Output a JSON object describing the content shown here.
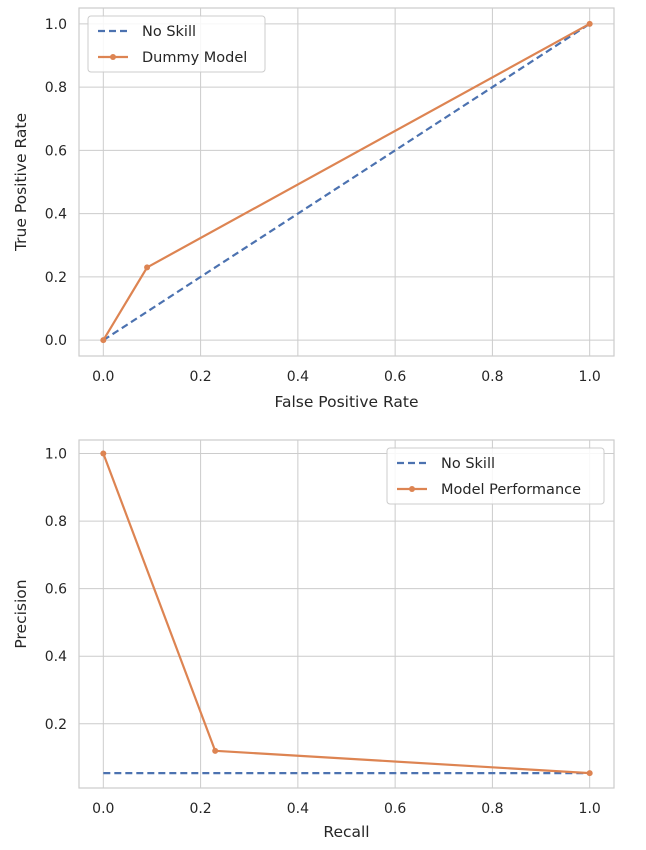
{
  "chart_data": [
    {
      "type": "line",
      "title": "",
      "xlabel": "False Positive Rate",
      "ylabel": "True Positive Rate",
      "xlim": [
        -0.05,
        1.05
      ],
      "ylim": [
        -0.05,
        1.05
      ],
      "xticks": [
        0.0,
        0.2,
        0.4,
        0.6,
        0.8,
        1.0
      ],
      "yticks": [
        0.0,
        0.2,
        0.4,
        0.6,
        0.8,
        1.0
      ],
      "xtick_labels": [
        "0.0",
        "0.2",
        "0.4",
        "0.6",
        "0.8",
        "1.0"
      ],
      "ytick_labels": [
        "0.0",
        "0.2",
        "0.4",
        "0.6",
        "0.8",
        "1.0"
      ],
      "grid": true,
      "legend_position": "top-left",
      "series": [
        {
          "name": "No Skill",
          "style": "dashed",
          "marker": false,
          "color": "#4c72b0",
          "x": [
            0,
            1
          ],
          "y": [
            0,
            1
          ]
        },
        {
          "name": "Dummy Model",
          "style": "solid",
          "marker": true,
          "color": "#dd8452",
          "x": [
            0,
            0.09,
            1
          ],
          "y": [
            0,
            0.23,
            1
          ]
        }
      ]
    },
    {
      "type": "line",
      "title": "",
      "xlabel": "Recall",
      "ylabel": "Precision",
      "xlim": [
        -0.05,
        1.05
      ],
      "ylim": [
        0.01,
        1.04
      ],
      "xticks": [
        0.0,
        0.2,
        0.4,
        0.6,
        0.8,
        1.0
      ],
      "yticks": [
        0.2,
        0.4,
        0.6,
        0.8,
        1.0
      ],
      "xtick_labels": [
        "0.0",
        "0.2",
        "0.4",
        "0.6",
        "0.8",
        "1.0"
      ],
      "ytick_labels": [
        "0.2",
        "0.4",
        "0.6",
        "0.8",
        "1.0"
      ],
      "grid": true,
      "legend_position": "top-right",
      "series": [
        {
          "name": "No Skill",
          "style": "dashed",
          "marker": false,
          "color": "#4c72b0",
          "x": [
            0,
            1
          ],
          "y": [
            0.054,
            0.054
          ]
        },
        {
          "name": "Model Performance",
          "style": "solid",
          "marker": true,
          "color": "#dd8452",
          "x": [
            0,
            0.23,
            1
          ],
          "y": [
            1.0,
            0.12,
            0.054
          ]
        }
      ]
    }
  ]
}
